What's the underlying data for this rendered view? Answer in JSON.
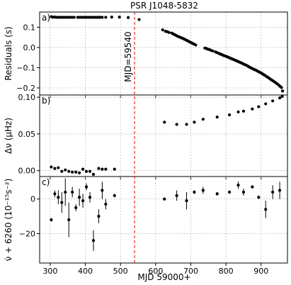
{
  "chart_data": {
    "type": "scatter",
    "title": "PSR J1048-5832",
    "xlabel": "MJD 59000+",
    "xlim": [
      270,
      975
    ],
    "xticks": [
      300,
      400,
      500,
      600,
      700,
      800,
      900
    ],
    "glitch": {
      "x": 540,
      "label": "MJD=59540",
      "color": "#e31a1c"
    },
    "panels": [
      {
        "tag": "a)",
        "ylabel": "Residuals (s)",
        "ylim": [
          -0.235,
          0.175
        ],
        "yticks": [
          0.1,
          0.0,
          -0.1,
          -0.2
        ],
        "ytick_labels": [
          "0.1",
          "0.0",
          "−0.1",
          "−0.2"
        ],
        "x": [
          303,
          308,
          313,
          318,
          323,
          328,
          333,
          338,
          343,
          348,
          353,
          358,
          363,
          368,
          378,
          383,
          388,
          393,
          398,
          403,
          408,
          413,
          418,
          423,
          428,
          433,
          438,
          443,
          448,
          458,
          475,
          497,
          522,
          553,
          620,
          628,
          633,
          638,
          646,
          650,
          654,
          658,
          662,
          666,
          670,
          674,
          678,
          682,
          686,
          690,
          694,
          698,
          702,
          706,
          710,
          714,
          740,
          744,
          748,
          752,
          756,
          762,
          770,
          774,
          778,
          782,
          786,
          790,
          794,
          798,
          802,
          806,
          810,
          814,
          818,
          822,
          826,
          830,
          834,
          838,
          842,
          846,
          850,
          854,
          858,
          862,
          866,
          870,
          874,
          878,
          882,
          886,
          890,
          894,
          898,
          902,
          906,
          910,
          914,
          918,
          922,
          926,
          930,
          934,
          938,
          942,
          946,
          950,
          954,
          958,
          961
        ],
        "y": [
          0.152,
          0.15,
          0.15,
          0.149,
          0.149,
          0.149,
          0.149,
          0.149,
          0.149,
          0.149,
          0.149,
          0.149,
          0.149,
          0.149,
          0.149,
          0.149,
          0.149,
          0.149,
          0.149,
          0.149,
          0.149,
          0.149,
          0.149,
          0.149,
          0.149,
          0.149,
          0.149,
          0.149,
          0.149,
          0.149,
          0.15,
          0.15,
          0.148,
          0.138,
          0.087,
          0.08,
          0.078,
          0.074,
          0.071,
          0.067,
          0.063,
          0.06,
          0.056,
          0.053,
          0.05,
          0.047,
          0.044,
          0.041,
          0.037,
          0.034,
          0.03,
          0.026,
          0.023,
          0.019,
          0.016,
          0.012,
          -0.003,
          -0.005,
          -0.008,
          -0.01,
          -0.013,
          -0.017,
          -0.022,
          -0.025,
          -0.028,
          -0.031,
          -0.034,
          -0.037,
          -0.04,
          -0.042,
          -0.045,
          -0.048,
          -0.051,
          -0.054,
          -0.057,
          -0.06,
          -0.063,
          -0.066,
          -0.069,
          -0.072,
          -0.075,
          -0.078,
          -0.082,
          -0.085,
          -0.088,
          -0.092,
          -0.096,
          -0.1,
          -0.103,
          -0.107,
          -0.11,
          -0.113,
          -0.117,
          -0.121,
          -0.124,
          -0.128,
          -0.133,
          -0.137,
          -0.142,
          -0.146,
          -0.151,
          -0.156,
          -0.161,
          -0.165,
          -0.17,
          -0.175,
          -0.18,
          -0.186,
          -0.192,
          -0.198,
          -0.215
        ],
        "err": []
      },
      {
        "tag": "b)",
        "ylabel": "Δν (μHz)",
        "ylim": [
          -0.008,
          0.103
        ],
        "yticks": [
          0.1,
          0.05,
          0.0
        ],
        "ytick_labels": [
          "0.10",
          "0.05",
          "0.00"
        ],
        "x": [
          303,
          313,
          323,
          333,
          343,
          353,
          363,
          373,
          383,
          393,
          403,
          413,
          423,
          438,
          448,
          458,
          483,
          625,
          660,
          688,
          710,
          735,
          775,
          810,
          835,
          850,
          875,
          893,
          913,
          933,
          953,
          960
        ],
        "y": [
          0.005,
          0.003,
          0.004,
          -0.001,
          0.001,
          -0.001,
          -0.002,
          -0.002,
          -0.003,
          0.002,
          -0.001,
          -0.001,
          -0.005,
          0.003,
          0.002,
          0.002,
          0.002,
          0.066,
          0.063,
          0.063,
          0.066,
          0.07,
          0.073,
          0.076,
          0.08,
          0.081,
          0.084,
          0.087,
          0.091,
          0.095,
          0.099,
          0.101
        ],
        "err": []
      },
      {
        "tag": "c)",
        "ylabel": "ν̇ + 6260 (10⁻¹⁵s⁻²)",
        "ylim": [
          -37,
          13
        ],
        "yticks": [
          0,
          -20
        ],
        "ytick_labels": [
          "0",
          "−20"
        ],
        "x": [
          303,
          313,
          323,
          333,
          343,
          353,
          363,
          373,
          383,
          393,
          403,
          413,
          423,
          438,
          448,
          458,
          483,
          625,
          660,
          688,
          710,
          735,
          775,
          810,
          835,
          850,
          875,
          893,
          913,
          933,
          953
        ],
        "y": [
          -12,
          3,
          1,
          -2,
          4,
          -12,
          4,
          -5,
          1,
          -1,
          7,
          1,
          -24,
          -10,
          5,
          -3,
          2,
          0,
          2,
          -1,
          4,
          5,
          3,
          4,
          8,
          4,
          7,
          1,
          -6,
          4,
          5
        ],
        "err": [
          1,
          2,
          4,
          6,
          8,
          10,
          3,
          2,
          5,
          4,
          2,
          3,
          6,
          4,
          5,
          3,
          1,
          0,
          3,
          5,
          1,
          2,
          1,
          1,
          2,
          2,
          1,
          1,
          5,
          4,
          5
        ]
      }
    ]
  }
}
